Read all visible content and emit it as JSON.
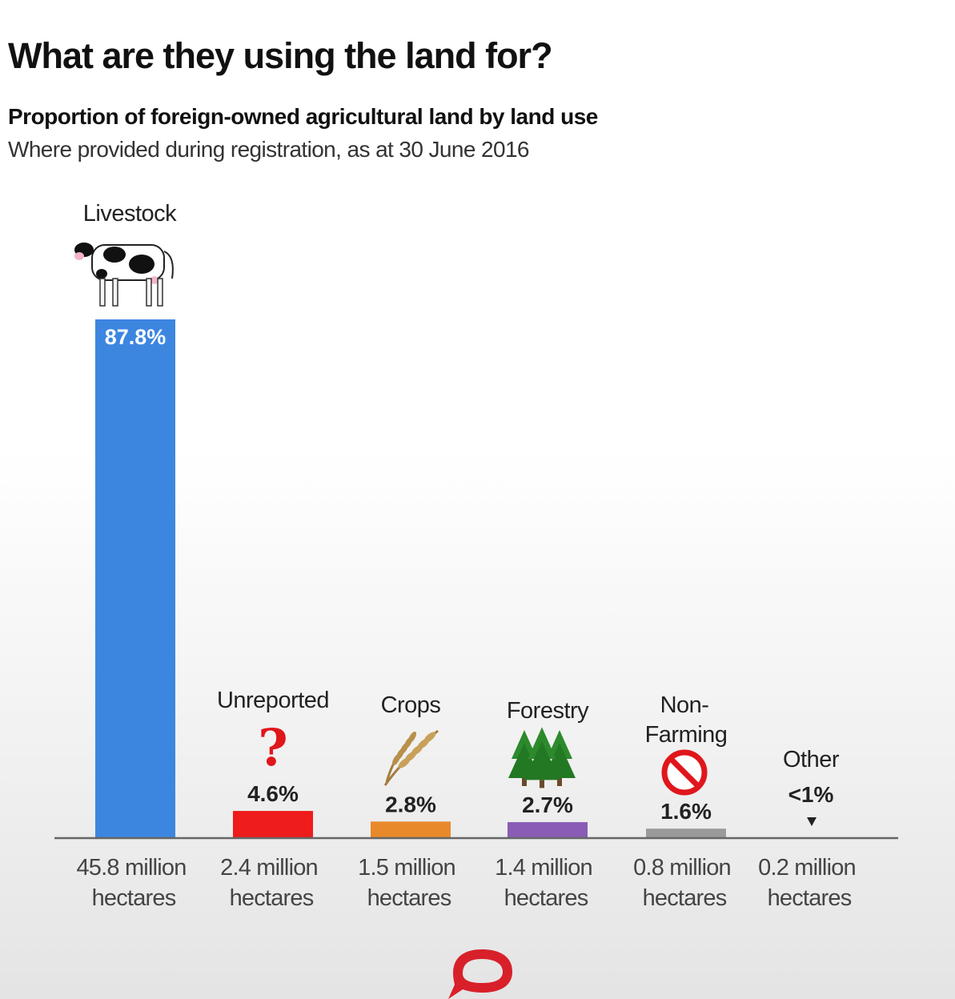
{
  "header": {
    "title": "What are they using the land for?",
    "subtitle": "Proportion of foreign-owned agricultural land by land use",
    "note": "Where provided during registration, as at 30 June 2016"
  },
  "chart_data": {
    "type": "bar",
    "categories": [
      "Livestock",
      "Unreported",
      "Crops",
      "Forestry",
      "Non-Farming",
      "Other"
    ],
    "values": [
      87.8,
      4.6,
      2.8,
      2.7,
      1.6,
      0.3
    ],
    "value_labels": [
      "87.8%",
      "4.6%",
      "2.8%",
      "2.7%",
      "1.6%",
      "<1%"
    ],
    "hectares": [
      "45.8 million",
      "2.4 million",
      "1.5 million",
      "1.4 million",
      "0.8 million",
      "0.2 million"
    ],
    "hectares_unit": "hectares",
    "colors": [
      "#3d86e0",
      "#ee1c1c",
      "#e8892c",
      "#8a5cb5",
      "#9a9a9a",
      "#9a9a9a"
    ],
    "icons": [
      "cow-icon",
      "question-mark-icon",
      "wheat-icon",
      "trees-icon",
      "no-symbol-icon",
      "down-arrow-icon"
    ],
    "ylim": [
      0,
      87.8
    ],
    "grid": false,
    "legend": "none"
  },
  "footer": {
    "logo_icon": "speech-bubble-logo-icon",
    "logo_color": "#d8202a"
  }
}
